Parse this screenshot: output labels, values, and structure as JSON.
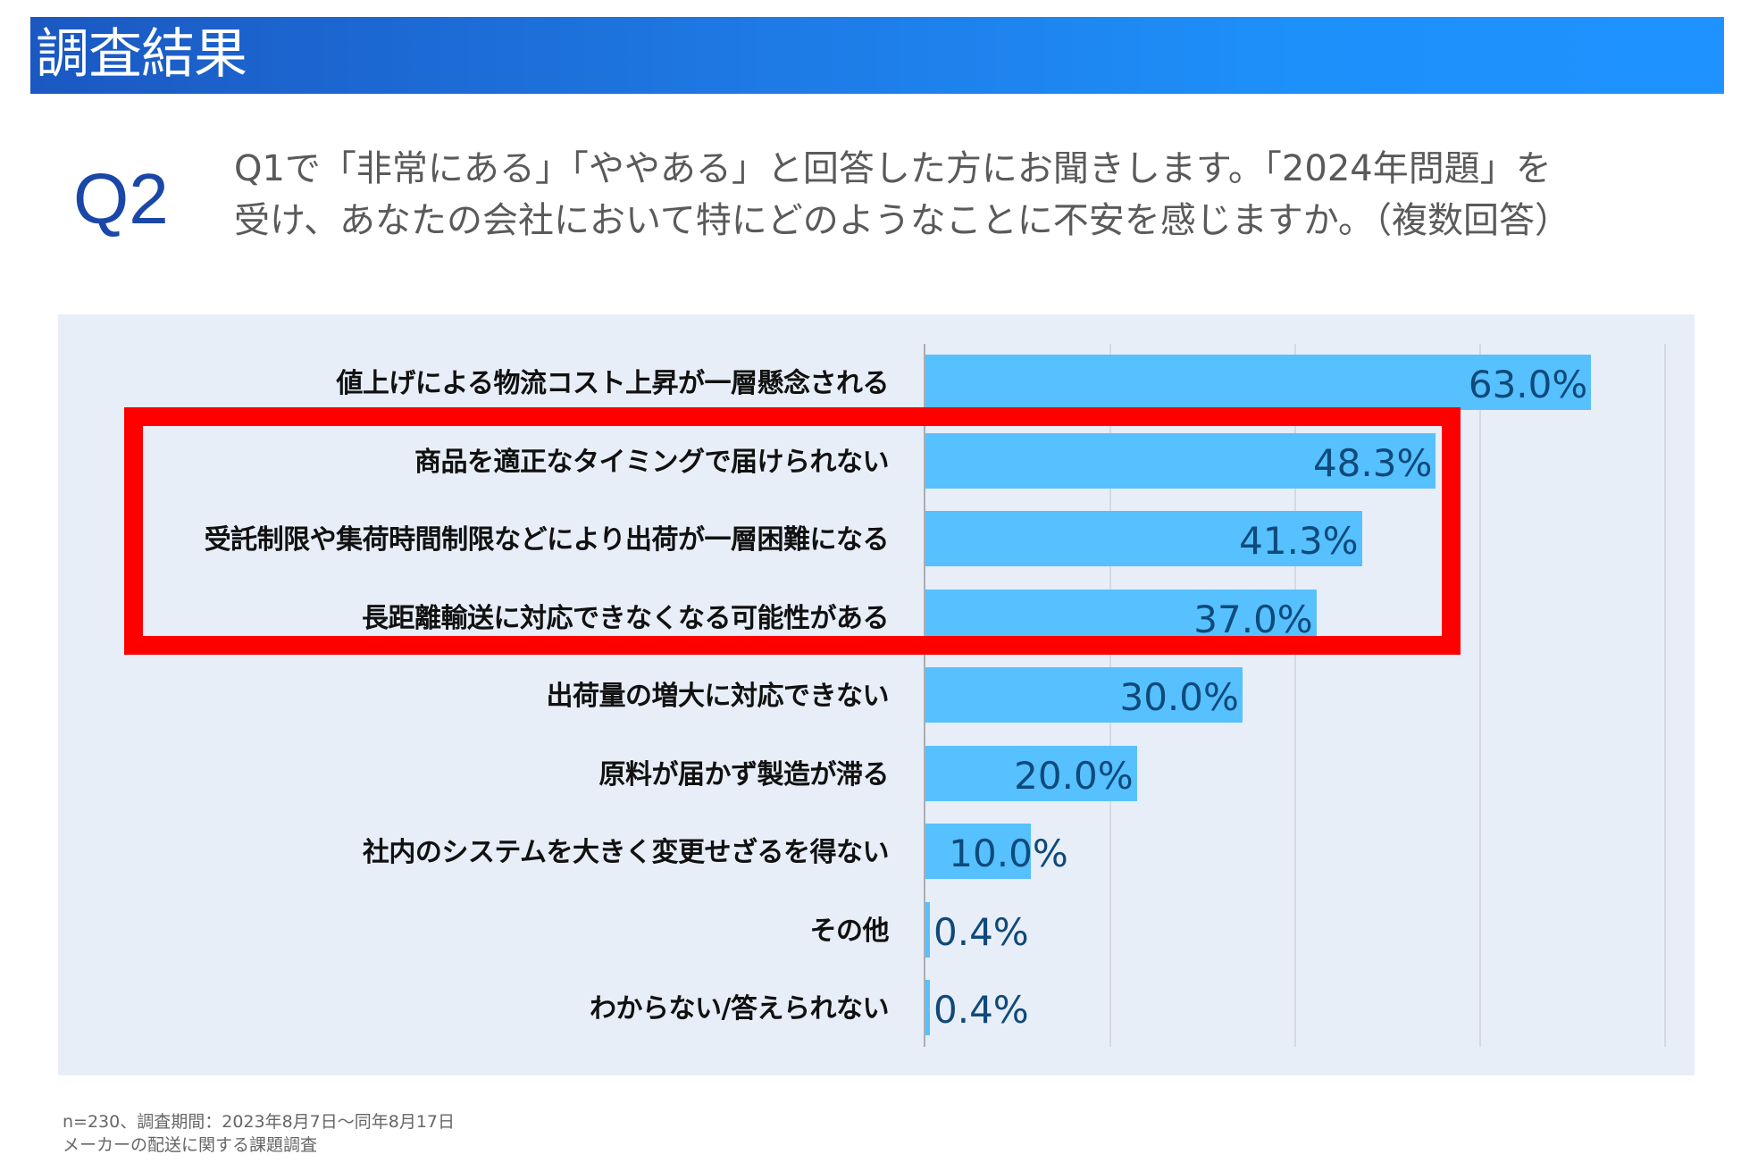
{
  "header": {
    "title": "調査結果"
  },
  "question": {
    "number": "Q2",
    "lines": [
      "Q1で「非常にある」「ややある」と回答した方にお聞きします。「2024年問題」を",
      "受け、あなたの会社において特にどのようなことに不安を感じますか。（複数回答）"
    ]
  },
  "colors": {
    "bar": "#57c0ff",
    "highlight": "#ff0000",
    "value_text": "#0e4a7a",
    "header_start": "#1b58c2",
    "header_end": "#1e92ff",
    "panel_bg": "#e8eef8"
  },
  "chart_data": {
    "type": "bar",
    "orientation": "horizontal",
    "title": "",
    "xlabel": "",
    "ylabel": "",
    "xlim": [
      0,
      70
    ],
    "grid": true,
    "gridlines_at": [
      17.5,
      35,
      52.5,
      70
    ],
    "tick_labels_visible": false,
    "categories": [
      "値上げによる物流コスト上昇が一層懸念される",
      "商品を適正なタイミングで届けられない",
      "受託制限や集荷時間制限などにより出荷が一層困難になる",
      "長距離輸送に対応できなくなる可能性がある",
      "出荷量の増大に対応できない",
      "原料が届かず製造が滞る",
      "社内のシステムを大きく変更せざるを得ない",
      "その他",
      "わからない/答えられない"
    ],
    "values": [
      63.0,
      48.3,
      41.3,
      37.0,
      30.0,
      20.0,
      10.0,
      0.4,
      0.4
    ],
    "value_labels": [
      "63.0%",
      "48.3%",
      "41.3%",
      "37.0%",
      "30.0%",
      "20.0%",
      "10.0%",
      "0.4%",
      "0.4%"
    ],
    "unit": "%",
    "highlighted_categories": [
      1,
      2,
      3
    ],
    "annotation": "red rectangle highlighting rows 2–4"
  },
  "footer": {
    "line1": "n=230、調査期間：2023年8月7日～同年8月17日",
    "line2": "メーカーの配送に関する課題調査"
  }
}
